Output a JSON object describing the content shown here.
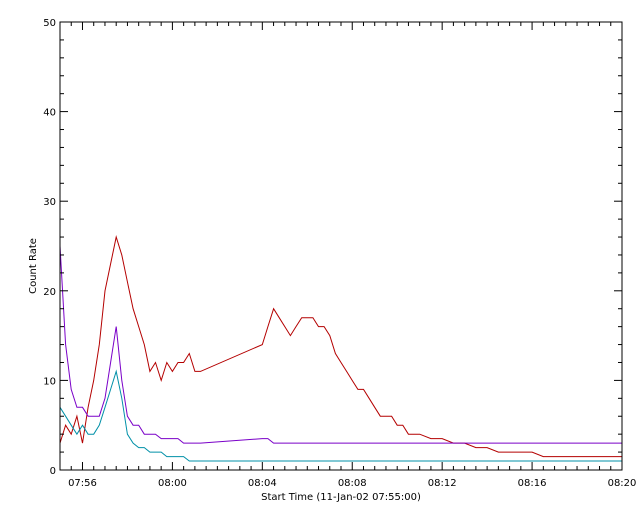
{
  "chart_data": {
    "type": "line",
    "title": "",
    "xlabel": "Start Time (11-Jan-02 07:55:00)",
    "ylabel": "Count Rate",
    "x_unit": "minutes",
    "xlim": [
      0,
      25
    ],
    "ylim": [
      0,
      50
    ],
    "x_ticks": [
      {
        "value": 1,
        "label": "07:56"
      },
      {
        "value": 5,
        "label": "08:00"
      },
      {
        "value": 9,
        "label": "08:04"
      },
      {
        "value": 13,
        "label": "08:08"
      },
      {
        "value": 17,
        "label": "08:12"
      },
      {
        "value": 21,
        "label": "08:16"
      },
      {
        "value": 25,
        "label": "08:20"
      }
    ],
    "y_ticks": [
      0,
      10,
      20,
      30,
      40,
      50
    ],
    "grid": false,
    "legend": "none",
    "series": [
      {
        "color": "#b40000",
        "x": [
          0,
          0.25,
          0.5,
          0.75,
          1,
          1.25,
          1.5,
          1.75,
          2,
          2.25,
          2.5,
          2.75,
          3,
          3.25,
          3.5,
          3.75,
          4,
          4.25,
          4.5,
          4.75,
          5,
          5.25,
          5.5,
          5.75,
          6,
          6.25,
          9,
          9.25,
          9.5,
          9.75,
          10,
          10.25,
          10.5,
          10.75,
          11,
          11.25,
          11.5,
          11.75,
          12,
          12.25,
          12.5,
          12.75,
          13,
          13.25,
          13.5,
          13.75,
          14,
          14.25,
          14.5,
          14.75,
          15,
          15.25,
          15.5,
          15.75,
          16,
          16.5,
          17,
          17.5,
          18,
          18.5,
          19,
          19.5,
          20,
          20.5,
          21,
          21.5,
          22,
          22.5,
          23,
          23.5,
          24,
          24.5,
          25
        ],
        "y": [
          3,
          5,
          4,
          6,
          3,
          7,
          10,
          14,
          20,
          23,
          26,
          24,
          21,
          18,
          16,
          14,
          11,
          12,
          10,
          12,
          11,
          12,
          12,
          13,
          11,
          11,
          14,
          16,
          18,
          17,
          16,
          15,
          16,
          17,
          17,
          17,
          16,
          16,
          15,
          13,
          12,
          11,
          10,
          9,
          9,
          8,
          7,
          6,
          6,
          6,
          5,
          5,
          4,
          4,
          4,
          3.5,
          3.5,
          3,
          3,
          2.5,
          2.5,
          2,
          2,
          2,
          2,
          1.5,
          1.5,
          1.5,
          1.5,
          1.5,
          1.5,
          1.5,
          1.5
        ]
      },
      {
        "color": "#7a00c8",
        "x": [
          0,
          0.25,
          0.5,
          0.75,
          1,
          1.25,
          1.5,
          1.75,
          2,
          2.25,
          2.5,
          2.75,
          3,
          3.25,
          3.5,
          3.75,
          4,
          4.25,
          4.5,
          4.75,
          5,
          5.25,
          5.5,
          5.75,
          6,
          6.25,
          9,
          9.25,
          9.5,
          9.75,
          10,
          10.5,
          11,
          11.5,
          12,
          12.5,
          13,
          13.5,
          14,
          14.5,
          15,
          15.5,
          16,
          16.5,
          17,
          17.5,
          18,
          18.5,
          19,
          19.5,
          20,
          20.5,
          21,
          21.5,
          22,
          22.5,
          23,
          23.5,
          24,
          24.5,
          25
        ],
        "y": [
          25,
          14,
          9,
          7,
          7,
          6,
          6,
          6,
          8,
          12,
          16,
          10,
          6,
          5,
          5,
          4,
          4,
          4,
          3.5,
          3.5,
          3.5,
          3.5,
          3,
          3,
          3,
          3,
          3.5,
          3.5,
          3,
          3,
          3,
          3,
          3,
          3,
          3,
          3,
          3,
          3,
          3,
          3,
          3,
          3,
          3,
          3,
          3,
          3,
          3,
          3,
          3,
          3,
          3,
          3,
          3,
          3,
          3,
          3,
          3,
          3,
          3,
          3,
          3
        ]
      },
      {
        "color": "#0090a8",
        "x": [
          0,
          0.25,
          0.5,
          0.75,
          1,
          1.25,
          1.5,
          1.75,
          2,
          2.25,
          2.5,
          2.75,
          3,
          3.25,
          3.5,
          3.75,
          4,
          4.25,
          4.5,
          4.75,
          5,
          5.25,
          5.5,
          5.75,
          6,
          6.25,
          9,
          9.25,
          9.5,
          9.75,
          10,
          10.5,
          11,
          11.5,
          12,
          12.5,
          13,
          13.5,
          14,
          14.5,
          15,
          15.5,
          16,
          16.5,
          17,
          17.5,
          18,
          18.5,
          19,
          19.5,
          20,
          20.5,
          21,
          21.5,
          22,
          22.5,
          23,
          23.5,
          24,
          24.5,
          25
        ],
        "y": [
          7,
          6,
          5,
          4,
          5,
          4,
          4,
          5,
          7,
          9,
          11,
          8,
          4,
          3,
          2.5,
          2.5,
          2,
          2,
          2,
          1.5,
          1.5,
          1.5,
          1.5,
          1,
          1,
          1,
          1,
          1,
          1,
          1,
          1,
          1,
          1,
          1,
          1,
          1,
          1,
          1,
          1,
          1,
          1,
          1,
          1,
          1,
          1,
          1,
          1,
          1,
          1,
          1,
          1,
          1,
          1,
          1,
          1,
          1,
          1,
          1,
          1,
          1,
          1
        ]
      }
    ]
  }
}
